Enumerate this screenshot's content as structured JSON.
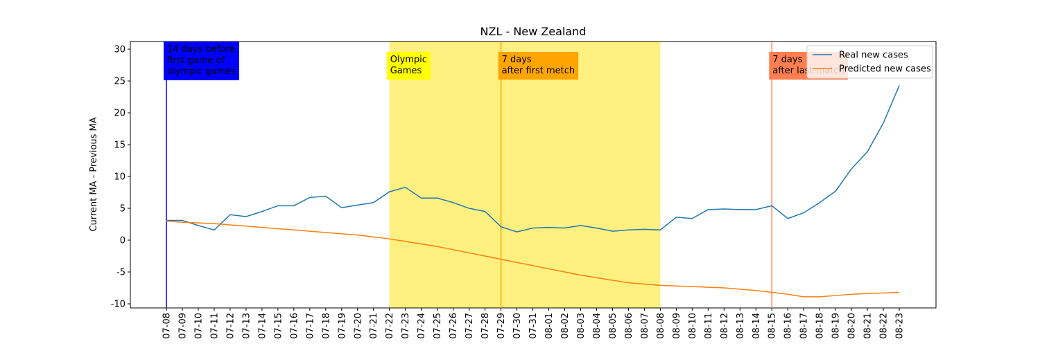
{
  "chart_data": {
    "type": "line",
    "title": "NZL - New Zealand",
    "y_label": "Current MA - Previous MA",
    "categories": [
      "07-08",
      "07-09",
      "07-10",
      "07-11",
      "07-12",
      "07-13",
      "07-14",
      "07-15",
      "07-16",
      "07-17",
      "07-18",
      "07-19",
      "07-20",
      "07-21",
      "07-22",
      "07-23",
      "07-24",
      "07-25",
      "07-26",
      "07-27",
      "07-28",
      "07-29",
      "07-30",
      "07-31",
      "08-01",
      "08-02",
      "08-03",
      "08-04",
      "08-05",
      "08-06",
      "08-07",
      "08-08",
      "08-09",
      "08-10",
      "08-11",
      "08-12",
      "08-13",
      "08-14",
      "08-15",
      "08-16",
      "08-17",
      "08-18",
      "08-19",
      "08-20",
      "08-21",
      "08-22",
      "08-23"
    ],
    "series": [
      {
        "name": "Real new cases",
        "color": "#1f77b4",
        "values": [
          3.1,
          3.1,
          2.3,
          1.6,
          4.0,
          3.7,
          4.5,
          5.4,
          5.4,
          6.7,
          6.9,
          5.1,
          5.5,
          5.9,
          7.6,
          8.3,
          6.6,
          6.6,
          5.9,
          5.0,
          4.5,
          2.1,
          1.3,
          1.9,
          2.0,
          1.9,
          2.3,
          1.9,
          1.4,
          1.6,
          1.7,
          1.6,
          3.6,
          3.4,
          4.8,
          4.9,
          4.8,
          4.8,
          5.4,
          3.4,
          4.3,
          5.9,
          7.7,
          11.2,
          13.9,
          18.4,
          24.3
        ]
      },
      {
        "name": "Predicted new cases",
        "color": "#ff7f0e",
        "values": [
          3.0,
          2.8,
          2.7,
          2.6,
          2.4,
          2.2,
          2.0,
          1.8,
          1.6,
          1.4,
          1.2,
          1.0,
          0.8,
          0.5,
          0.2,
          -0.2,
          -0.6,
          -1.0,
          -1.5,
          -2.0,
          -2.5,
          -3.0,
          -3.5,
          -4.0,
          -4.5,
          -5.0,
          -5.5,
          -5.9,
          -6.3,
          -6.7,
          -6.9,
          -7.1,
          -7.2,
          -7.3,
          -7.4,
          -7.5,
          -7.7,
          -7.9,
          -8.2,
          -8.5,
          -8.9,
          -8.9,
          -8.7,
          -8.5,
          -8.4,
          -8.3,
          -8.2
        ]
      }
    ],
    "ylim": [
      -10.65,
      31.2
    ],
    "yticks": [
      -10,
      -5,
      0,
      5,
      10,
      15,
      20,
      25,
      30
    ],
    "legend": "upper right",
    "shaded_span": {
      "from": "07-22",
      "to": "08-08",
      "color": "#fff080"
    },
    "annotations": [
      {
        "at": "07-08",
        "color": "#0000ff",
        "text_color": "#ffffff",
        "text": [
          "14 days before",
          "first game of",
          "olympic games"
        ]
      },
      {
        "at": "07-22",
        "color": "#ffff00",
        "text_color": "#000000",
        "text": [
          "Olympic",
          "Games"
        ],
        "no_line": true
      },
      {
        "at": "07-29",
        "color": "#ffa500",
        "text_color": "#000000",
        "text": [
          "7 days",
          "after first metch"
        ]
      },
      {
        "at": "08-15",
        "color": "#ff7f50",
        "text_color": "#000000",
        "text": [
          "7 days",
          "after last match"
        ]
      }
    ]
  }
}
